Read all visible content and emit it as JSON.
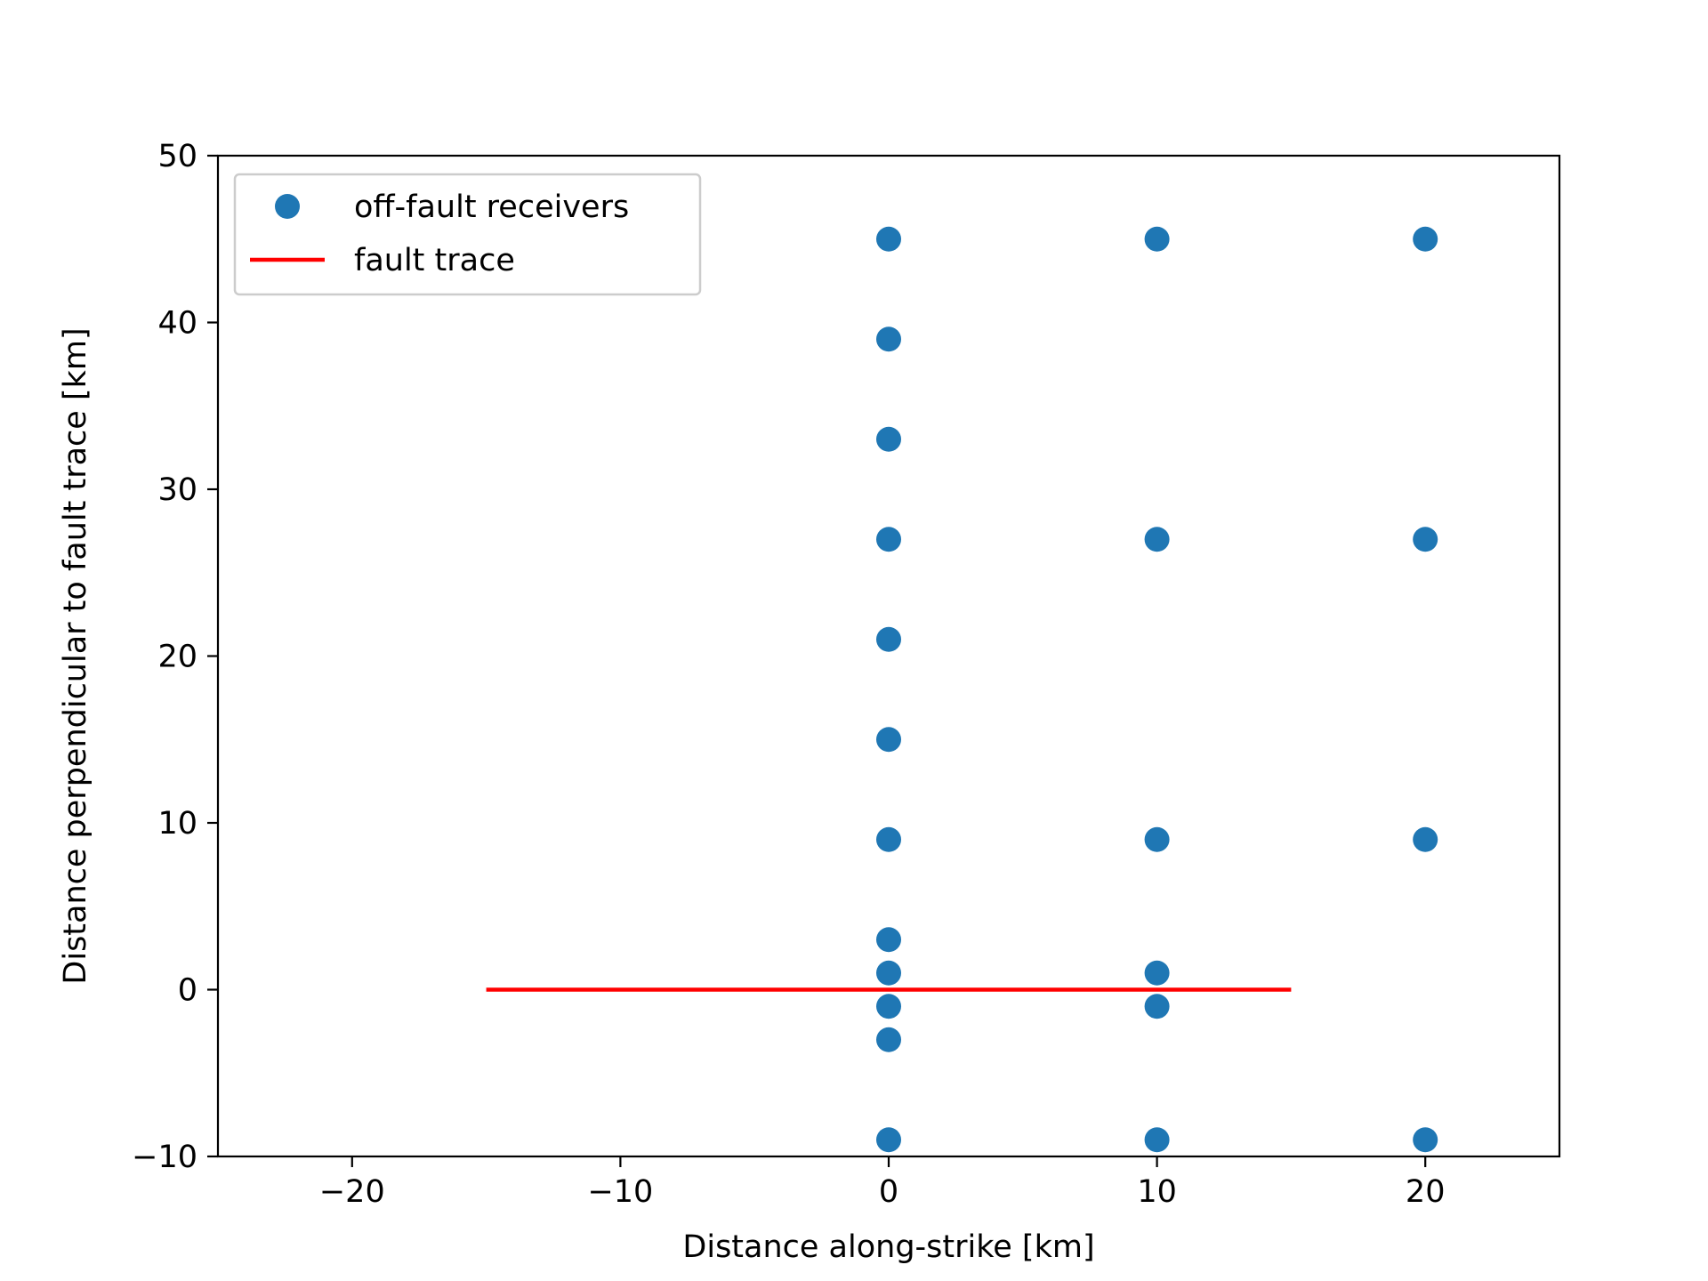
{
  "chart_data": {
    "type": "scatter",
    "title": "",
    "xlabel": "Distance along-strike [km]",
    "ylabel": "Distance perpendicular to fault trace [km]",
    "xlim": [
      -25,
      25
    ],
    "ylim": [
      -10,
      50
    ],
    "xticks": [
      -20,
      -10,
      0,
      10,
      20
    ],
    "xtick_labels": [
      "−20",
      "−10",
      "0",
      "10",
      "20"
    ],
    "yticks": [
      -10,
      0,
      10,
      20,
      30,
      40,
      50
    ],
    "ytick_labels": [
      "−10",
      "0",
      "10",
      "20",
      "30",
      "40",
      "50"
    ],
    "grid": false,
    "legend_position": "upper-left",
    "series": [
      {
        "name": "off-fault receivers",
        "kind": "scatter",
        "color": "#1f77b4",
        "points": [
          {
            "x": 0,
            "y": -9
          },
          {
            "x": 0,
            "y": -3
          },
          {
            "x": 0,
            "y": -1
          },
          {
            "x": 0,
            "y": 1
          },
          {
            "x": 0,
            "y": 3
          },
          {
            "x": 0,
            "y": 9
          },
          {
            "x": 0,
            "y": 15
          },
          {
            "x": 0,
            "y": 21
          },
          {
            "x": 0,
            "y": 27
          },
          {
            "x": 0,
            "y": 33
          },
          {
            "x": 0,
            "y": 39
          },
          {
            "x": 0,
            "y": 45
          },
          {
            "x": 10,
            "y": -9
          },
          {
            "x": 10,
            "y": -1
          },
          {
            "x": 10,
            "y": 1
          },
          {
            "x": 10,
            "y": 9
          },
          {
            "x": 10,
            "y": 27
          },
          {
            "x": 10,
            "y": 45
          },
          {
            "x": 20,
            "y": -9
          },
          {
            "x": 20,
            "y": 9
          },
          {
            "x": 20,
            "y": 27
          },
          {
            "x": 20,
            "y": 45
          }
        ]
      },
      {
        "name": "fault trace",
        "kind": "line",
        "color": "#ff0000",
        "points": [
          {
            "x": -15,
            "y": 0
          },
          {
            "x": 15,
            "y": 0
          }
        ]
      }
    ]
  }
}
